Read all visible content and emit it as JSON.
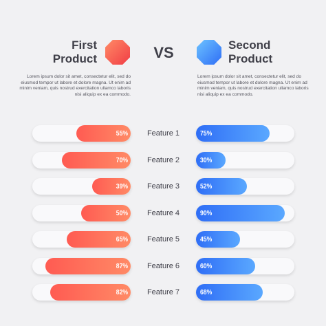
{
  "header": {
    "left_title": [
      "First",
      "Product"
    ],
    "vs_label": "VS",
    "right_title": [
      "Second",
      "Product"
    ],
    "left_description": "Lorem ipsum dolor sit amet, consectetur elit, sed do eiusmod tempor ut labore et dolore magna. Ut enim ad minim veniam, quis nostrud exercitation ullamco laboris nisi aliquip ex ea commodo.",
    "right_description": "Lorem ipsum dolor sit amet, consectetur elit, sed do eiusmod tempor ut labore et dolore magna. Ut enim ad minim veniam, quis nostrud exercitation ullamco laboris nisi aliquip ex ea commodo."
  },
  "colors": {
    "first_product": "#f4564f",
    "second_product": "#3a86f8"
  },
  "chart_data": {
    "type": "bar",
    "title": "",
    "categories": [
      "Feature 1",
      "Feature 2",
      "Feature 3",
      "Feature 4",
      "Feature 5",
      "Feature 6",
      "Feature 7"
    ],
    "series": [
      {
        "values": [
          55,
          70,
          39,
          50,
          65,
          87,
          82
        ],
        "labels": [
          "55%",
          "70%",
          "39%",
          "50%",
          "65%",
          "87%",
          "82%"
        ]
      },
      {
        "values": [
          75,
          30,
          52,
          90,
          45,
          60,
          68
        ],
        "labels": [
          "75%",
          "30%",
          "52%",
          "90%",
          "45%",
          "60%",
          "68%"
        ]
      }
    ],
    "ylim": [
      0,
      100
    ],
    "grid": false,
    "legend": "none"
  }
}
